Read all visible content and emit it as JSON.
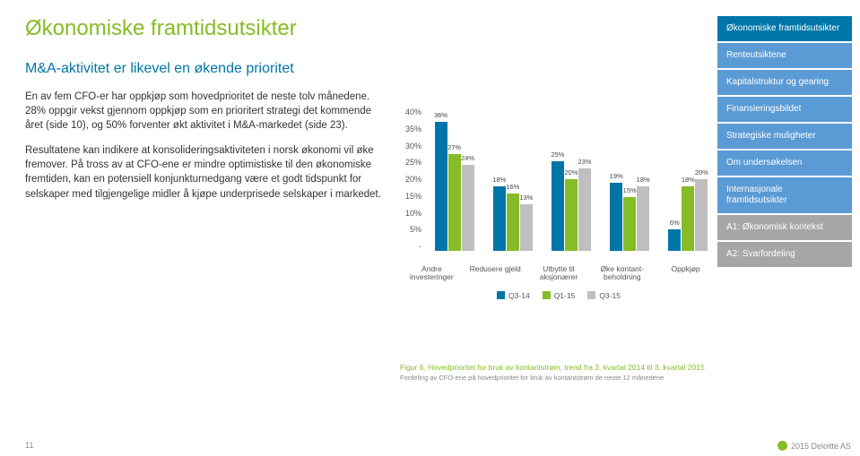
{
  "page": {
    "title": "Økonomiske framtidsutsikter",
    "subtitle": "M&A-aktivitet er likevel en økende prioritet",
    "para1": "En av fem CFO-er har oppkjøp som hovedprioritet de neste tolv månedene. 28% oppgir vekst gjennom oppkjøp som en prioritert strategi det kommende året (side 10), og 50% forventer økt aktivitet i M&A-markedet (side 23).",
    "para2": "Resultatene kan indikere at konsolideringsaktiviteten i norsk økonomi vil øke fremover. På tross av at CFO-ene er mindre optimistiske til den økonomiske fremtiden, kan en potensiell konjunkturnedgang være et godt tidspunkt for selskaper med tilgjengelige midler å kjøpe underprisede selskaper i markedet.",
    "page_number": "11",
    "copyright": "2015 Deloitte AS"
  },
  "sidebar": {
    "items": [
      {
        "label": "Økonomiske framtidsutsikter",
        "color": "#0076a8"
      },
      {
        "label": "Renteutsiktene",
        "color": "#5b9bd5"
      },
      {
        "label": "Kapitalstruktur og gearing",
        "color": "#5b9bd5"
      },
      {
        "label": "Finansieringsbildet",
        "color": "#5b9bd5"
      },
      {
        "label": "Strategiske muligheter",
        "color": "#5b9bd5"
      },
      {
        "label": "Om undersøkelsen",
        "color": "#5b9bd5"
      },
      {
        "label": "Internasjonale framtidsutsikter",
        "color": "#5b9bd5"
      },
      {
        "label": "A1: Økonomisk kontekst",
        "color": "#a6a6a6"
      },
      {
        "label": "A2: Svarfordeling",
        "color": "#a6a6a6"
      }
    ]
  },
  "chart": {
    "type": "bar",
    "ymax": 40,
    "ytick_step": 5,
    "yticks": [
      "40%",
      "35%",
      "30%",
      "25%",
      "20%",
      "15%",
      "10%",
      "5%",
      "-"
    ],
    "series_colors": [
      "#0076a8",
      "#86bc25",
      "#bfbfbf"
    ],
    "series_labels": [
      "Q3-14",
      "Q1-15",
      "Q3-15"
    ],
    "categories": [
      {
        "label": "Andre investeringer",
        "values": [
          36,
          27,
          24
        ],
        "labels": [
          "36%",
          "27%",
          "24%"
        ]
      },
      {
        "label": "Redusere gjeld",
        "values": [
          18,
          16,
          13
        ],
        "labels": [
          "18%",
          "16%",
          "13%"
        ]
      },
      {
        "label": "Utbytte til aksjonærer",
        "values": [
          25,
          20,
          23
        ],
        "labels": [
          "25%",
          "20%",
          "23%"
        ]
      },
      {
        "label": "Øke kontant-beholdning",
        "values": [
          19,
          15,
          18
        ],
        "labels": [
          "19%",
          "15%",
          "18%"
        ]
      },
      {
        "label": "Oppkjøp",
        "values": [
          6,
          18,
          20
        ],
        "labels": [
          "6%",
          "18%",
          "20%"
        ]
      }
    ],
    "caption": "Figur 6. Hovedprioritet for bruk av kontantstrøm, trend fra 3. kvartal 2014 til 3. kvartal 2015",
    "sub_caption": "Fordeling av CFO-ene på hovedprioritet for bruk av kontantstrøm de neste 12 månedene"
  }
}
